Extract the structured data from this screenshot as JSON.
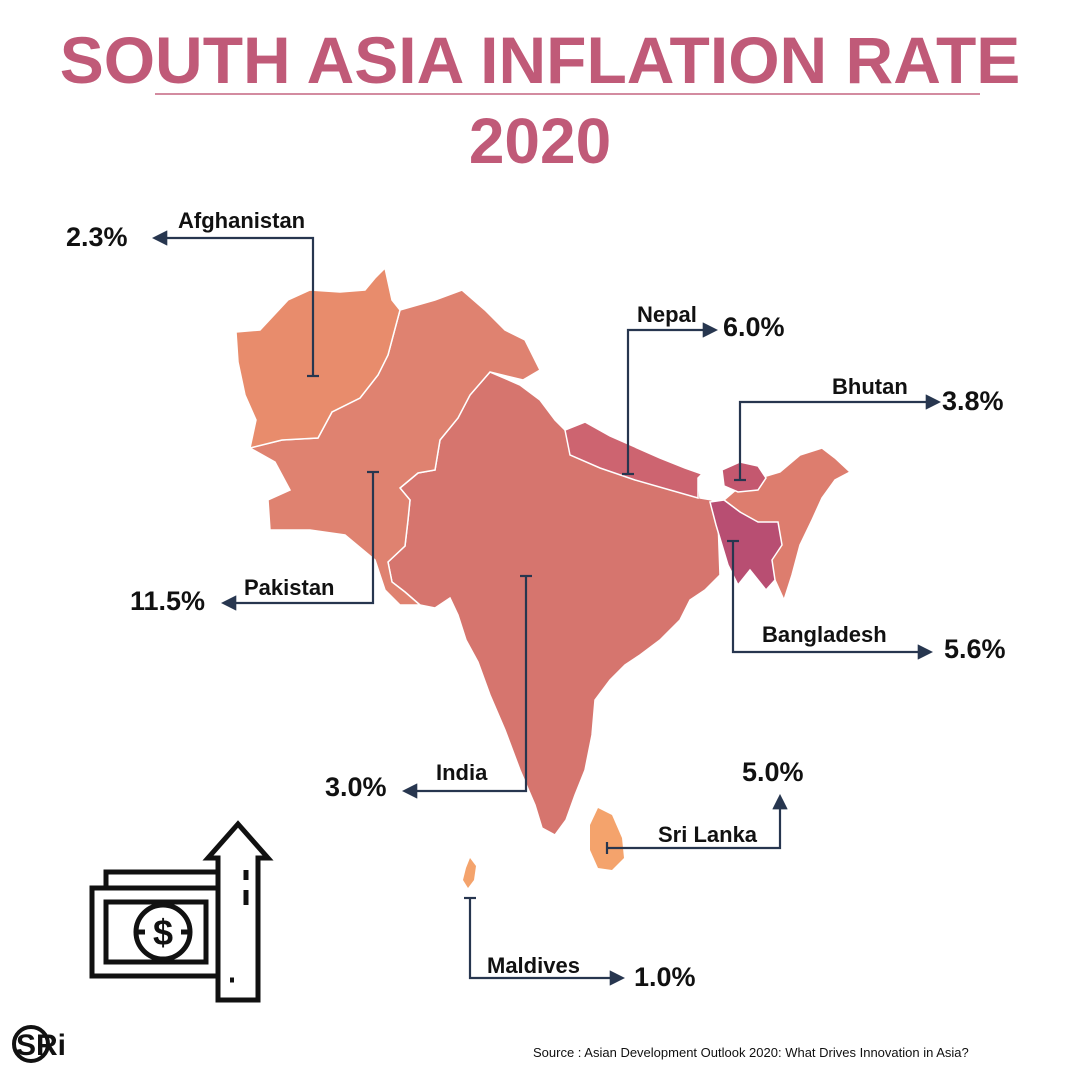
{
  "title": "SOUTH ASIA INFLATION RATE",
  "year": "2020",
  "colors": {
    "title": "#c05a78",
    "leader": "#27364f",
    "afghanistan": "#e88c6c",
    "pakistan": "#df8270",
    "india": "#d6756e",
    "nepal": "#cd6470",
    "bhutan": "#c4586f",
    "bangladesh": "#b84e72",
    "northeast": "#dd7d6e",
    "sri_lanka": "#f4a36c",
    "maldives": "#f4a36c"
  },
  "countries": [
    {
      "key": "afghanistan",
      "name": "Afghanistan",
      "value": "2.3%"
    },
    {
      "key": "nepal",
      "name": "Nepal",
      "value": "6.0%"
    },
    {
      "key": "bhutan",
      "name": "Bhutan",
      "value": "3.8%"
    },
    {
      "key": "pakistan",
      "name": "Pakistan",
      "value": "11.5%"
    },
    {
      "key": "bangladesh",
      "name": "Bangladesh",
      "value": "5.6%"
    },
    {
      "key": "india",
      "name": "India",
      "value": "3.0%"
    },
    {
      "key": "sri_lanka",
      "name": "Sri Lanka",
      "value": "5.0%"
    },
    {
      "key": "maldives",
      "name": "Maldives",
      "value": "1.0%"
    }
  ],
  "icons": {
    "illustration": "money-with-up-arrow-icon",
    "logo": "sri-logo"
  },
  "logo_text": "SRi",
  "source": "Source : Asian Development Outlook 2020: What Drives Innovation in Asia?"
}
